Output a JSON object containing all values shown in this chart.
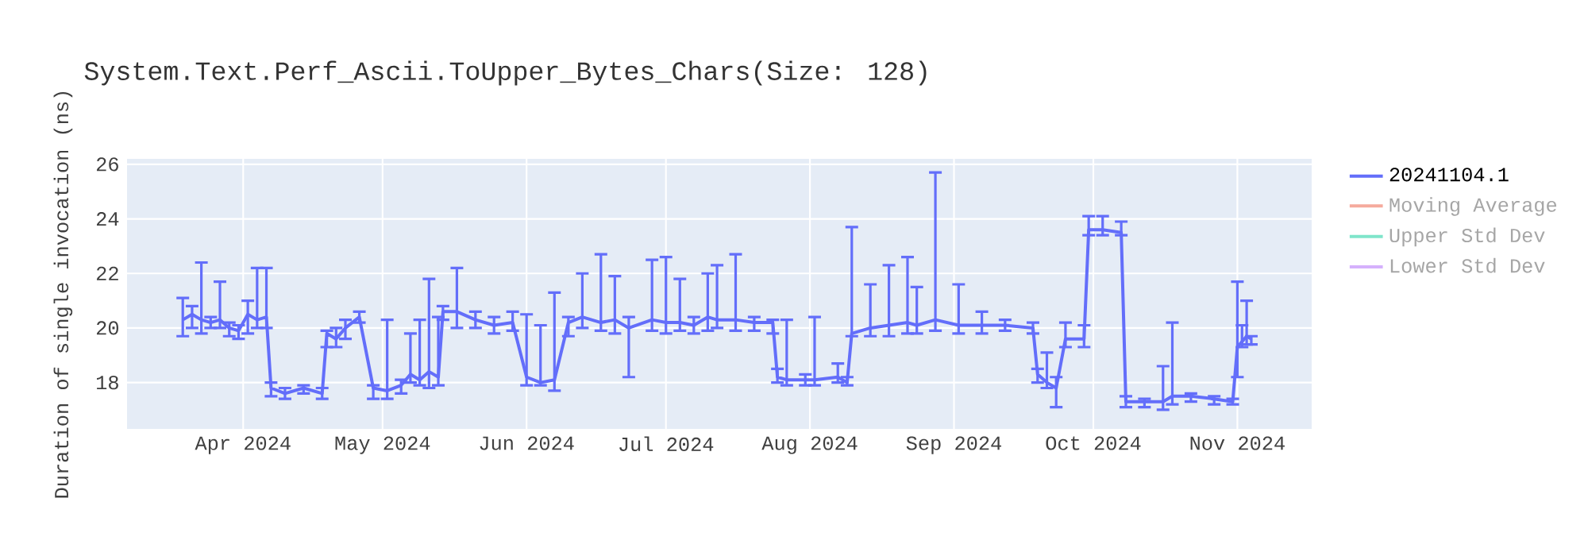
{
  "chart_data": {
    "type": "line",
    "title": "System.Text.Perf_Ascii.ToUpper_Bytes_Chars(Size: 128)",
    "ylabel": "Duration of single invocation (ns)",
    "x": [
      "2024-03-19",
      "2024-03-21",
      "2024-03-23",
      "2024-03-25",
      "2024-03-27",
      "2024-03-29",
      "2024-03-31",
      "2024-04-02",
      "2024-04-04",
      "2024-04-06",
      "2024-04-07",
      "2024-04-10",
      "2024-04-14",
      "2024-04-18",
      "2024-04-19",
      "2024-04-21",
      "2024-04-23",
      "2024-04-26",
      "2024-04-29",
      "2024-05-02",
      "2024-05-05",
      "2024-05-07",
      "2024-05-09",
      "2024-05-11",
      "2024-05-13",
      "2024-05-14",
      "2024-05-17",
      "2024-05-21",
      "2024-05-25",
      "2024-05-29",
      "2024-06-01",
      "2024-06-04",
      "2024-06-07",
      "2024-06-10",
      "2024-06-13",
      "2024-06-17",
      "2024-06-20",
      "2024-06-23",
      "2024-06-28",
      "2024-07-01",
      "2024-07-04",
      "2024-07-07",
      "2024-07-10",
      "2024-07-12",
      "2024-07-16",
      "2024-07-20",
      "2024-07-24",
      "2024-07-25",
      "2024-07-27",
      "2024-07-31",
      "2024-08-02",
      "2024-08-07",
      "2024-08-09",
      "2024-08-10",
      "2024-08-14",
      "2024-08-18",
      "2024-08-22",
      "2024-08-24",
      "2024-08-28",
      "2024-09-02",
      "2024-09-07",
      "2024-09-12",
      "2024-09-18",
      "2024-09-19",
      "2024-09-21",
      "2024-09-23",
      "2024-09-25",
      "2024-09-29",
      "2024-09-30",
      "2024-10-03",
      "2024-10-07",
      "2024-10-08",
      "2024-10-12",
      "2024-10-16",
      "2024-10-18",
      "2024-10-22",
      "2024-10-27",
      "2024-10-31",
      "2024-11-01",
      "2024-11-02",
      "2024-11-03",
      "2024-11-04"
    ],
    "series": [
      {
        "name": "20241104.1",
        "color": "#636efa",
        "values": [
          20.3,
          20.5,
          20.3,
          20.2,
          20.3,
          20.0,
          19.9,
          20.5,
          20.3,
          20.4,
          17.8,
          17.6,
          17.8,
          17.6,
          19.8,
          19.6,
          20.0,
          20.4,
          17.8,
          17.7,
          17.9,
          18.3,
          18.1,
          18.4,
          18.2,
          20.6,
          20.6,
          20.3,
          20.1,
          20.2,
          18.2,
          18.0,
          18.1,
          20.2,
          20.4,
          20.2,
          20.3,
          20.0,
          20.3,
          20.2,
          20.2,
          20.1,
          20.4,
          20.3,
          20.3,
          20.2,
          20.2,
          18.2,
          18.1,
          18.1,
          18.1,
          18.2,
          18.0,
          19.8,
          20.0,
          20.1,
          20.2,
          20.1,
          20.3,
          20.1,
          20.1,
          20.1,
          20.0,
          18.3,
          18.0,
          17.8,
          19.6,
          19.6,
          23.6,
          23.6,
          23.5,
          17.3,
          17.3,
          17.3,
          17.5,
          17.5,
          17.4,
          17.3,
          19.3,
          19.5,
          19.7,
          19.6
        ],
        "errors": [
          [
            19.7,
            21.1
          ],
          [
            20.0,
            20.8
          ],
          [
            19.8,
            22.4
          ],
          [
            20.0,
            20.4
          ],
          [
            20.0,
            21.7
          ],
          [
            19.7,
            20.2
          ],
          [
            19.6,
            20.1
          ],
          [
            19.8,
            21.0
          ],
          [
            20.0,
            22.2
          ],
          [
            20.0,
            22.2
          ],
          [
            17.5,
            18.0
          ],
          [
            17.4,
            17.8
          ],
          [
            17.6,
            17.9
          ],
          [
            17.4,
            17.8
          ],
          [
            19.3,
            19.9
          ],
          [
            19.3,
            20.0
          ],
          [
            19.6,
            20.3
          ],
          [
            20.2,
            20.6
          ],
          [
            17.4,
            17.9
          ],
          [
            17.4,
            20.3
          ],
          [
            17.6,
            18.1
          ],
          [
            18.0,
            19.8
          ],
          [
            17.9,
            20.3
          ],
          [
            17.8,
            21.8
          ],
          [
            17.9,
            20.4
          ],
          [
            20.3,
            20.8
          ],
          [
            20.0,
            22.2
          ],
          [
            20.0,
            20.6
          ],
          [
            19.8,
            20.4
          ],
          [
            19.9,
            20.6
          ],
          [
            17.9,
            20.5
          ],
          [
            17.9,
            20.1
          ],
          [
            17.7,
            21.3
          ],
          [
            19.7,
            20.4
          ],
          [
            20.0,
            22.0
          ],
          [
            19.9,
            22.7
          ],
          [
            19.8,
            21.9
          ],
          [
            18.2,
            20.4
          ],
          [
            19.9,
            22.5
          ],
          [
            19.8,
            22.6
          ],
          [
            19.9,
            21.8
          ],
          [
            19.8,
            20.4
          ],
          [
            19.9,
            22.0
          ],
          [
            20.0,
            22.3
          ],
          [
            19.9,
            22.7
          ],
          [
            19.9,
            20.4
          ],
          [
            19.8,
            20.3
          ],
          [
            18.0,
            18.5
          ],
          [
            17.9,
            20.3
          ],
          [
            17.9,
            18.3
          ],
          [
            17.9,
            20.4
          ],
          [
            18.0,
            18.7
          ],
          [
            17.9,
            18.2
          ],
          [
            19.7,
            23.7
          ],
          [
            19.7,
            21.6
          ],
          [
            19.7,
            22.3
          ],
          [
            19.8,
            22.6
          ],
          [
            19.8,
            21.5
          ],
          [
            19.9,
            25.7
          ],
          [
            19.8,
            21.6
          ],
          [
            19.8,
            20.6
          ],
          [
            19.9,
            20.3
          ],
          [
            19.8,
            20.2
          ],
          [
            18.0,
            18.5
          ],
          [
            17.8,
            19.1
          ],
          [
            17.1,
            18.2
          ],
          [
            19.3,
            20.2
          ],
          [
            19.3,
            20.1
          ],
          [
            23.4,
            24.1
          ],
          [
            23.4,
            24.1
          ],
          [
            23.4,
            23.9
          ],
          [
            17.1,
            17.5
          ],
          [
            17.1,
            17.4
          ],
          [
            17.0,
            18.6
          ],
          [
            17.2,
            20.2
          ],
          [
            17.3,
            17.6
          ],
          [
            17.2,
            17.5
          ],
          [
            17.2,
            17.4
          ],
          [
            18.2,
            21.7
          ],
          [
            19.3,
            20.1
          ],
          [
            19.4,
            21.0
          ],
          [
            19.4,
            19.7
          ]
        ]
      },
      {
        "name": "Moving Average",
        "color": "#f5aa9d",
        "values": [
          null,
          null,
          null,
          null,
          null,
          null,
          null,
          null,
          null,
          null,
          null,
          null,
          null,
          null,
          null,
          null,
          null,
          null,
          null,
          null,
          null,
          null,
          null,
          null,
          null,
          null,
          null,
          null,
          null,
          null,
          null,
          null,
          null,
          null,
          null,
          null,
          null,
          null,
          null,
          null,
          null,
          null,
          null,
          null,
          null,
          null,
          null,
          null,
          null,
          null,
          null,
          null,
          null,
          null,
          null,
          null,
          null,
          null,
          null,
          null,
          null,
          null,
          null,
          null,
          null,
          null,
          null,
          null,
          null,
          null,
          null,
          null,
          null,
          null,
          null,
          null,
          null,
          null,
          null,
          null,
          null,
          null
        ]
      },
      {
        "name": "Upper Std Dev",
        "color": "#7fe5ca",
        "values": [
          null,
          null,
          null,
          null,
          null,
          null,
          null,
          null,
          null,
          null,
          null,
          null,
          null,
          null,
          null,
          null,
          null,
          null,
          null,
          null,
          null,
          null,
          null,
          null,
          null,
          null,
          null,
          null,
          null,
          null,
          null,
          null,
          null,
          null,
          null,
          null,
          null,
          null,
          null,
          null,
          null,
          null,
          null,
          null,
          null,
          null,
          null,
          null,
          null,
          null,
          null,
          null,
          null,
          null,
          null,
          null,
          null,
          null,
          null,
          null,
          null,
          null,
          null,
          null,
          null,
          null,
          null,
          null,
          null,
          null,
          null,
          null,
          null,
          null,
          null,
          null,
          null,
          null,
          null,
          null,
          null,
          null
        ]
      },
      {
        "name": "Lower Std Dev",
        "color": "#d5b1fc",
        "values": [
          null,
          null,
          null,
          null,
          null,
          null,
          null,
          null,
          null,
          null,
          null,
          null,
          null,
          null,
          null,
          null,
          null,
          null,
          null,
          null,
          null,
          null,
          null,
          null,
          null,
          null,
          null,
          null,
          null,
          null,
          null,
          null,
          null,
          null,
          null,
          null,
          null,
          null,
          null,
          null,
          null,
          null,
          null,
          null,
          null,
          null,
          null,
          null,
          null,
          null,
          null,
          null,
          null,
          null,
          null,
          null,
          null,
          null,
          null,
          null,
          null,
          null,
          null,
          null,
          null,
          null,
          null,
          null,
          null,
          null,
          null,
          null,
          null,
          null,
          null,
          null,
          null,
          null,
          null,
          null,
          null,
          null
        ]
      }
    ],
    "xlim": [
      "2024-03-07",
      "2024-11-17"
    ],
    "ylim": [
      16.3,
      26.2
    ],
    "xticks": [
      {
        "value": "2024-04-01",
        "label": "Apr 2024"
      },
      {
        "value": "2024-05-01",
        "label": "May 2024"
      },
      {
        "value": "2024-06-01",
        "label": "Jun 2024"
      },
      {
        "value": "2024-07-01",
        "label": "Jul 2024"
      },
      {
        "value": "2024-08-01",
        "label": "Aug 2024"
      },
      {
        "value": "2024-09-01",
        "label": "Sep 2024"
      },
      {
        "value": "2024-10-01",
        "label": "Oct 2024"
      },
      {
        "value": "2024-11-01",
        "label": "Nov 2024"
      }
    ],
    "yticks": [
      18,
      20,
      22,
      24,
      26
    ],
    "grid": true,
    "legend": "right"
  }
}
